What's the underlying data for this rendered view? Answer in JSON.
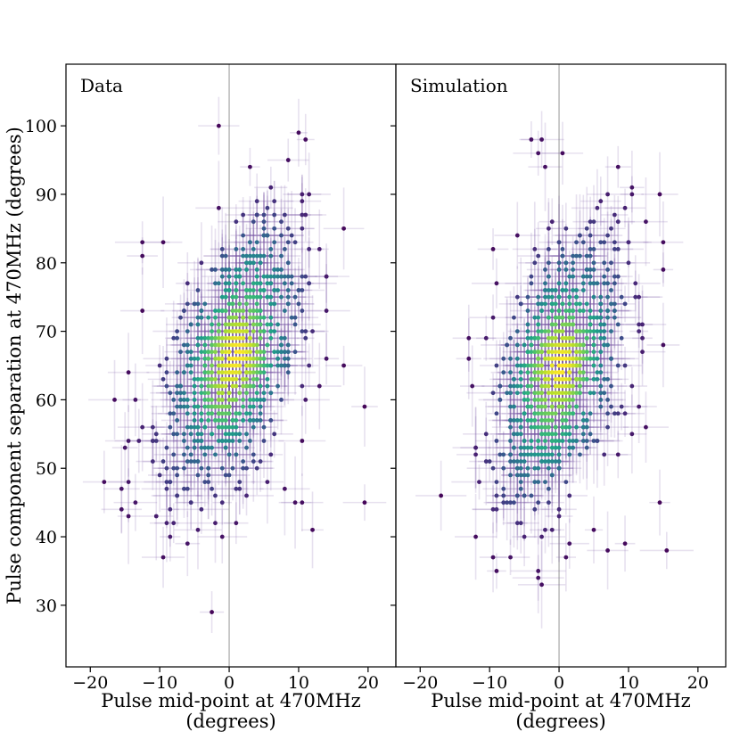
{
  "chart_data": [
    {
      "type": "scatter",
      "title": "",
      "panel_label": "Data",
      "xlabel": "Pulse mid-point at 470MHz",
      "xlabel_units": "(degrees)",
      "ylabel": "Pulse component separation at 470MHz (degrees)",
      "xlim": [
        -23.5,
        24
      ],
      "ylim": [
        21,
        109
      ],
      "xticks": [
        -20,
        -10,
        0,
        10,
        20
      ],
      "yticks": [
        30,
        40,
        50,
        60,
        70,
        80,
        90,
        100
      ],
      "x_ticklabels": [
        "−20",
        "−10",
        "0",
        "10",
        "20"
      ],
      "y_ticklabels": [
        "30",
        "40",
        "50",
        "60",
        "70",
        "80",
        "90",
        "100"
      ],
      "reference_line_x": 0,
      "color_map": "viridis (point density)",
      "errorbar_color": "#7b5aa6",
      "core": {
        "center": [
          0.5,
          66
        ],
        "spread": [
          5.0,
          10.0
        ],
        "count": 850,
        "correlation": 0.55
      },
      "outliers": [
        [
          -1.5,
          100
        ],
        [
          3.0,
          94
        ],
        [
          10.0,
          99
        ],
        [
          8.5,
          95
        ],
        [
          -18,
          48
        ],
        [
          -14.5,
          43
        ],
        [
          -9.5,
          37
        ],
        [
          -9.0,
          42
        ],
        [
          -8.0,
          42
        ],
        [
          -2.5,
          29
        ],
        [
          -2.0,
          42
        ],
        [
          16.5,
          65
        ],
        [
          19.5,
          59
        ],
        [
          19.5,
          45
        ],
        [
          12.0,
          41
        ],
        [
          10.5,
          45
        ],
        [
          10.5,
          54
        ],
        [
          10.5,
          62
        ],
        [
          11.5,
          82
        ],
        [
          -12.5,
          81
        ],
        [
          -12.5,
          83
        ],
        [
          -9.5,
          83
        ],
        [
          -12.5,
          73
        ],
        [
          -14.5,
          64
        ],
        [
          -13.5,
          60
        ],
        [
          -13.0,
          54
        ],
        [
          -15.5,
          47
        ]
      ]
    },
    {
      "type": "scatter",
      "title": "",
      "panel_label": "Simulation",
      "xlabel": "Pulse mid-point at 470MHz",
      "xlabel_units": "(degrees)",
      "ylabel": "",
      "xlim": [
        -23.5,
        24
      ],
      "ylim": [
        21,
        109
      ],
      "xticks": [
        -20,
        -10,
        0,
        10,
        20
      ],
      "yticks": [
        30,
        40,
        50,
        60,
        70,
        80,
        90,
        100
      ],
      "x_ticklabels": [
        "−20",
        "−10",
        "0",
        "10",
        "20"
      ],
      "reference_line_x": 0,
      "color_map": "viridis (point density)",
      "errorbar_color": "#7b5aa6",
      "core": {
        "center": [
          0.0,
          65
        ],
        "spread": [
          4.6,
          9.5
        ],
        "count": 820,
        "correlation": 0.45
      },
      "outliers": [
        [
          -4.0,
          98
        ],
        [
          -2.5,
          98
        ],
        [
          0.5,
          96
        ],
        [
          -3.0,
          96
        ],
        [
          -17.0,
          46
        ],
        [
          -12.0,
          40
        ],
        [
          -9.5,
          37
        ],
        [
          -9.0,
          35
        ],
        [
          -7.0,
          37
        ],
        [
          -3.0,
          34
        ],
        [
          -2.5,
          33
        ],
        [
          1.0,
          37
        ],
        [
          1.5,
          39
        ],
        [
          5.0,
          41
        ],
        [
          7.0,
          38
        ],
        [
          9.5,
          39
        ],
        [
          14.5,
          45
        ],
        [
          15.5,
          38
        ],
        [
          15.0,
          68
        ],
        [
          15.0,
          83
        ],
        [
          14.5,
          90
        ],
        [
          10.5,
          91
        ],
        [
          8.5,
          82
        ],
        [
          11.0,
          75
        ],
        [
          11.5,
          70
        ],
        [
          12.0,
          69
        ],
        [
          12.5,
          56
        ],
        [
          10.5,
          55
        ],
        [
          8.5,
          58
        ],
        [
          -13.0,
          69
        ],
        [
          -13.0,
          66
        ],
        [
          -12.5,
          62
        ],
        [
          -9.5,
          82
        ],
        [
          -9.0,
          77
        ],
        [
          -9.5,
          72
        ]
      ]
    }
  ]
}
